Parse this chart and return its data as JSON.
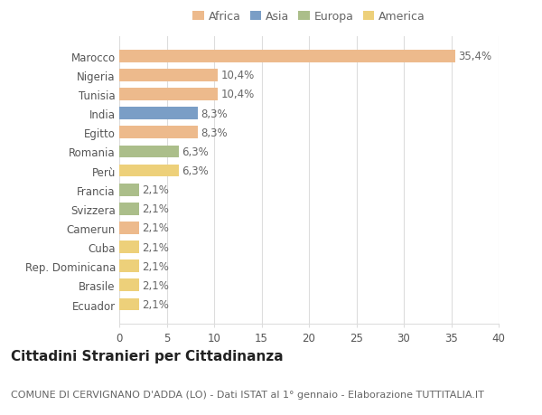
{
  "countries": [
    "Marocco",
    "Nigeria",
    "Tunisia",
    "India",
    "Egitto",
    "Romania",
    "Perù",
    "Francia",
    "Svizzera",
    "Camerun",
    "Cuba",
    "Rep. Dominicana",
    "Brasile",
    "Ecuador"
  ],
  "values": [
    35.4,
    10.4,
    10.4,
    8.3,
    8.3,
    6.3,
    6.3,
    2.1,
    2.1,
    2.1,
    2.1,
    2.1,
    2.1,
    2.1
  ],
  "labels": [
    "35,4%",
    "10,4%",
    "10,4%",
    "8,3%",
    "8,3%",
    "6,3%",
    "6,3%",
    "2,1%",
    "2,1%",
    "2,1%",
    "2,1%",
    "2,1%",
    "2,1%",
    "2,1%"
  ],
  "continents": [
    "Africa",
    "Africa",
    "Africa",
    "Asia",
    "Africa",
    "Europa",
    "America",
    "Europa",
    "Europa",
    "Africa",
    "America",
    "America",
    "America",
    "America"
  ],
  "continent_colors": {
    "Africa": "#EDBA8C",
    "Asia": "#7A9EC6",
    "Europa": "#ABBE8A",
    "America": "#EDD07A"
  },
  "legend_order": [
    "Africa",
    "Asia",
    "Europa",
    "America"
  ],
  "title": "Cittadini Stranieri per Cittadinanza",
  "subtitle": "COMUNE DI CERVIGNANO D'ADDA (LO) - Dati ISTAT al 1° gennaio - Elaborazione TUTTITALIA.IT",
  "xlim": [
    0,
    40
  ],
  "xticks": [
    0,
    5,
    10,
    15,
    20,
    25,
    30,
    35,
    40
  ],
  "background_color": "#ffffff",
  "grid_color": "#dddddd",
  "bar_height": 0.65,
  "label_fontsize": 8.5,
  "tick_fontsize": 8.5,
  "title_fontsize": 11,
  "subtitle_fontsize": 8
}
